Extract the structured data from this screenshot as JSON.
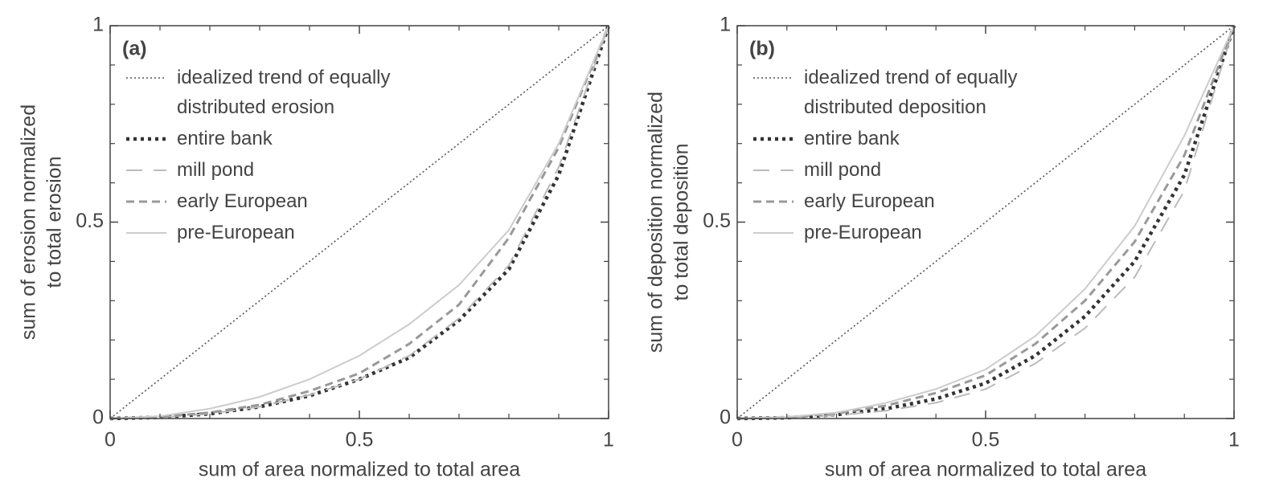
{
  "chart_data": [
    {
      "type": "line",
      "panel_label": "(a)",
      "xlabel": "sum of area normalized to total area",
      "ylabel": [
        "sum of erosion normalized",
        "to total erosion"
      ],
      "x": [
        0,
        0.1,
        0.2,
        0.3,
        0.4,
        0.5,
        0.6,
        0.7,
        0.8,
        0.9,
        1
      ],
      "xlim": [
        0,
        1
      ],
      "ylim": [
        0,
        1
      ],
      "xticks": [
        0,
        0.5,
        1
      ],
      "yticks": [
        0,
        0.5,
        1
      ],
      "minor_ticks": [
        0.1,
        0.2,
        0.3,
        0.4,
        0.6,
        0.7,
        0.8,
        0.9
      ],
      "legend": "upper left",
      "series": [
        {
          "name": "idealized trend of equally distributed erosion",
          "color": "#555555",
          "style": "dotted",
          "values": [
            0,
            0.1,
            0.2,
            0.3,
            0.4,
            0.5,
            0.6,
            0.7,
            0.8,
            0.9,
            1
          ]
        },
        {
          "name": "entire bank",
          "color": "#333333",
          "style": "thick-dotted",
          "values": [
            0,
            0.003,
            0.012,
            0.03,
            0.058,
            0.1,
            0.155,
            0.25,
            0.38,
            0.62,
            1
          ]
        },
        {
          "name": "mill pond",
          "color": "#bbbbbb",
          "style": "long-dash",
          "values": [
            0,
            0.003,
            0.012,
            0.03,
            0.06,
            0.1,
            0.16,
            0.255,
            0.39,
            0.64,
            1
          ]
        },
        {
          "name": "early European",
          "color": "#999999",
          "style": "dash",
          "values": [
            0,
            0.004,
            0.015,
            0.035,
            0.07,
            0.115,
            0.19,
            0.29,
            0.46,
            0.69,
            1
          ]
        },
        {
          "name": "pre-European",
          "color": "#cccccc",
          "style": "solid",
          "values": [
            0,
            0.006,
            0.025,
            0.055,
            0.1,
            0.16,
            0.24,
            0.34,
            0.48,
            0.7,
            1
          ]
        }
      ]
    },
    {
      "type": "line",
      "panel_label": "(b)",
      "xlabel": "sum of area normalized to total area",
      "ylabel": [
        "sum of deposition normalized",
        "to total deposition"
      ],
      "x": [
        0,
        0.1,
        0.2,
        0.3,
        0.4,
        0.5,
        0.6,
        0.7,
        0.8,
        0.9,
        1
      ],
      "xlim": [
        0,
        1
      ],
      "ylim": [
        0,
        1
      ],
      "xticks": [
        0,
        0.5,
        1
      ],
      "yticks": [
        0,
        0.5,
        1
      ],
      "minor_ticks": [
        0.1,
        0.2,
        0.3,
        0.4,
        0.6,
        0.7,
        0.8,
        0.9
      ],
      "legend": "upper left",
      "series": [
        {
          "name": "idealized trend of equally distributed deposition",
          "color": "#555555",
          "style": "dotted",
          "values": [
            0,
            0.1,
            0.2,
            0.3,
            0.4,
            0.5,
            0.6,
            0.7,
            0.8,
            0.9,
            1
          ]
        },
        {
          "name": "entire bank",
          "color": "#333333",
          "style": "thick-dotted",
          "values": [
            0,
            0.002,
            0.01,
            0.025,
            0.05,
            0.09,
            0.16,
            0.26,
            0.4,
            0.62,
            1
          ]
        },
        {
          "name": "mill pond",
          "color": "#bbbbbb",
          "style": "long-dash",
          "values": [
            0,
            0.002,
            0.008,
            0.02,
            0.04,
            0.075,
            0.14,
            0.23,
            0.36,
            0.58,
            1
          ]
        },
        {
          "name": "early European",
          "color": "#999999",
          "style": "dash",
          "values": [
            0,
            0.003,
            0.013,
            0.033,
            0.065,
            0.11,
            0.19,
            0.3,
            0.45,
            0.67,
            1
          ]
        },
        {
          "name": "pre-European",
          "color": "#cccccc",
          "style": "solid",
          "values": [
            0,
            0.004,
            0.015,
            0.04,
            0.075,
            0.125,
            0.21,
            0.33,
            0.49,
            0.72,
            1
          ]
        }
      ]
    }
  ]
}
